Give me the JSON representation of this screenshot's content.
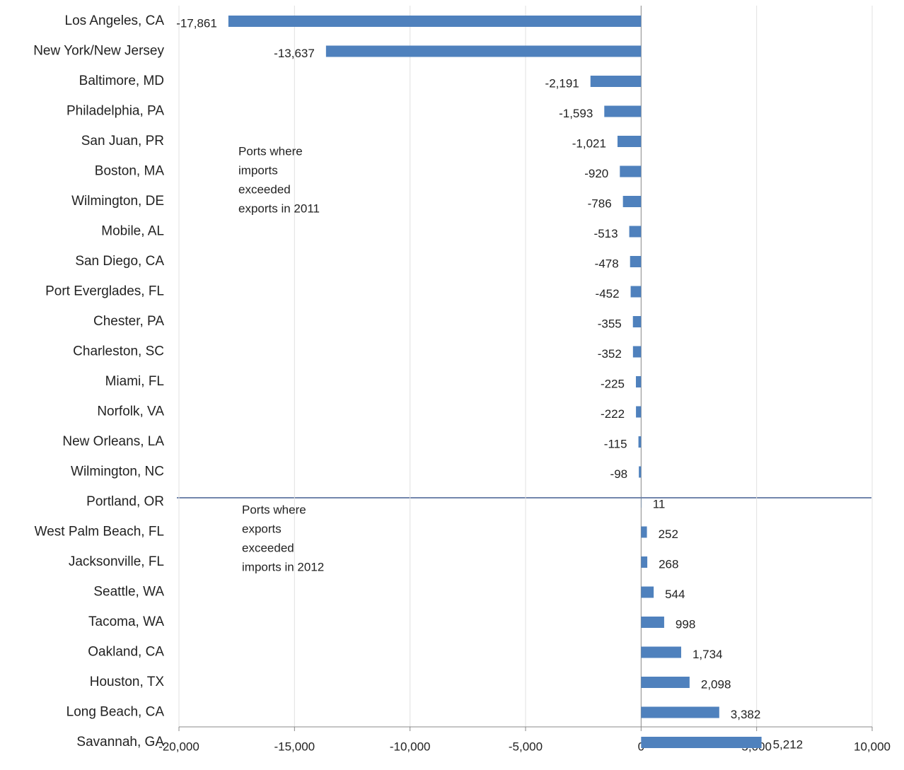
{
  "chart_data": {
    "type": "hbar",
    "categories": [
      "Los Angeles, CA",
      "New York/New Jersey",
      "Baltimore, MD",
      "Philadelphia, PA",
      "San Juan, PR",
      "Boston, MA",
      "Wilmington, DE",
      "Mobile, AL",
      "San Diego, CA",
      "Port Everglades, FL",
      "Chester, PA",
      "Charleston, SC",
      "Miami, FL",
      "Norfolk, VA",
      "New Orleans, LA",
      "Wilmington, NC",
      "Portland, OR",
      "West Palm Beach, FL",
      "Jacksonville, FL",
      "Seattle, WA",
      "Tacoma, WA",
      "Oakland, CA",
      "Houston, TX",
      "Long Beach, CA",
      "Savannah, GA"
    ],
    "values": [
      -17861,
      -13637,
      -2191,
      -1593,
      -1021,
      -920,
      -786,
      -513,
      -478,
      -452,
      -355,
      -352,
      -225,
      -222,
      -115,
      -98,
      11,
      252,
      268,
      544,
      998,
      1734,
      2098,
      3382,
      5212
    ],
    "value_labels": [
      "-17,861",
      "-13,637",
      "-2,191",
      "-1,593",
      "-1,021",
      "-920",
      "-786",
      "-513",
      "-478",
      "-452",
      "-355",
      "-352",
      "-225",
      "-222",
      "-115",
      "-98",
      "11",
      "252",
      "268",
      "544",
      "998",
      "1,734",
      "2,098",
      "3,382",
      "5,212"
    ],
    "color": "#4f81bd",
    "xlim": [
      -20000,
      10000
    ],
    "xticks": [
      {
        "value": -20000,
        "label": "-20,000"
      },
      {
        "value": -15000,
        "label": "-15,000"
      },
      {
        "value": -10000,
        "label": "-10,000"
      },
      {
        "value": -5000,
        "label": "-5,000"
      },
      0,
      {
        "value": 5000,
        "label": "5,000"
      },
      {
        "value": 10000,
        "label": "10,000"
      }
    ],
    "grid": true,
    "annotations": [
      {
        "lines": [
          "Ports where",
          "imports",
          "exceeded",
          "exports in 2011"
        ]
      },
      {
        "lines": [
          "Ports where",
          "exports",
          "exceeded",
          "imports in 2012"
        ]
      }
    ]
  }
}
